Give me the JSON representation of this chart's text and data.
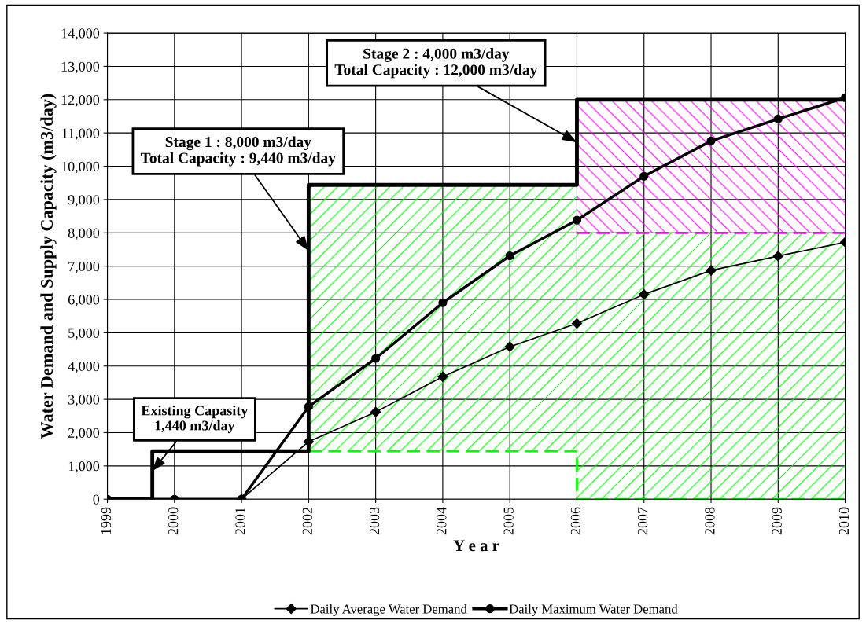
{
  "chart_data": {
    "type": "line",
    "xlabel": "Y e a r",
    "ylabel": "Water Demand and Supply Capacity (m3/day)",
    "xlim": [
      1999,
      2010
    ],
    "xticks": [
      1999,
      2000,
      2001,
      2002,
      2003,
      2004,
      2005,
      2006,
      2007,
      2008,
      2009,
      2010
    ],
    "ylim": [
      0,
      14000
    ],
    "yticks": [
      {
        "value": 0,
        "label": "0"
      },
      {
        "value": 1000,
        "label": "1,000"
      },
      {
        "value": 2000,
        "label": "2,000"
      },
      {
        "value": 3000,
        "label": "3,000"
      },
      {
        "value": 4000,
        "label": "4,000"
      },
      {
        "value": 5000,
        "label": "5,000"
      },
      {
        "value": 6000,
        "label": "6,000"
      },
      {
        "value": 7000,
        "label": "7,000"
      },
      {
        "value": 8000,
        "label": "8,000"
      },
      {
        "value": 9000,
        "label": "9,000"
      },
      {
        "value": 10000,
        "label": "10,000"
      },
      {
        "value": 11000,
        "label": "11,000"
      },
      {
        "value": 12000,
        "label": "12,000"
      },
      {
        "value": 13000,
        "label": "13,000"
      },
      {
        "value": 14000,
        "label": "14,000"
      }
    ],
    "grid": true,
    "legend": "bottom",
    "series": [
      {
        "type": "line",
        "color": "#00ff00",
        "line_style": "dashed",
        "marker": "none",
        "x": [
          2002,
          2006,
          2006,
          2010
        ],
        "values": [
          1440,
          1440,
          0,
          0
        ],
        "lower": [
          1440,
          1440,
          0,
          0
        ],
        "upper": [
          9440,
          9440,
          8000,
          8000
        ]
      },
      {
        "type": "line",
        "color": "#ff00ff",
        "line_style": "dashed",
        "marker": "none",
        "x": [
          2006,
          2010
        ],
        "values": [
          8000,
          8000
        ],
        "lower": [
          8000,
          8000
        ],
        "upper": [
          12000,
          12000
        ]
      },
      {
        "type": "step",
        "color": "#000000",
        "marker": "none",
        "x": [
          1999,
          1999.67,
          2002,
          2006,
          2010
        ],
        "values": [
          0,
          1440,
          9440,
          12000,
          12000
        ]
      },
      {
        "name": "Daily Average Water Demand",
        "color": "#000000",
        "marker": "diamond",
        "x": [
          2001,
          2002,
          2003,
          2004,
          2005,
          2006,
          2007,
          2008,
          2009,
          2010
        ],
        "values": [
          0,
          1730,
          2620,
          3680,
          4580,
          5280,
          6150,
          6870,
          7300,
          7720
        ]
      },
      {
        "name": "Daily Maximum Water Demand",
        "color": "#000000",
        "marker": "circle",
        "x": [
          1999,
          2000,
          2001,
          2002,
          2003,
          2004,
          2005,
          2006,
          2007,
          2008,
          2009,
          2010
        ],
        "values": [
          0,
          0,
          0,
          2780,
          4230,
          5900,
          7310,
          8380,
          9700,
          10760,
          11420,
          12060
        ]
      }
    ],
    "annotations": [
      {
        "text": "Existing Capasity\n1,440 m3/day",
        "x": 1999.67,
        "y": 850
      },
      {
        "text": "Stage 1 : 8,000 m3/day\nTotal Capacity : 9,440 m3/day",
        "x": 2002,
        "y": 7460
      },
      {
        "text": "Stage 2 : 4,000 m3/day\nTotal Capacity : 12,000 m3/day",
        "x": 2006,
        "y": 10720
      }
    ]
  }
}
